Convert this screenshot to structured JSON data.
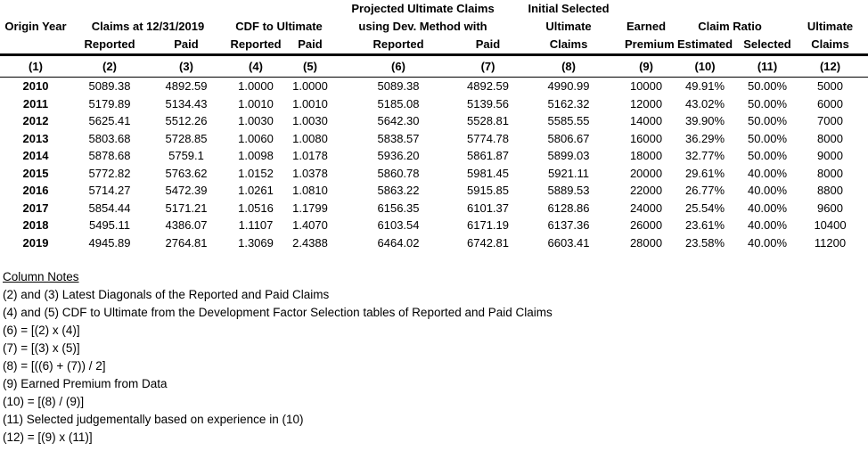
{
  "table": {
    "header": {
      "group_row": {
        "projected_ultimate": "Projected Ultimate Claims",
        "initial_selected": "Initial Selected"
      },
      "label_row": {
        "origin_year": "Origin Year",
        "claims_at_date": "Claims at 12/31/2019",
        "cdf_to_ultimate": "CDF to Ultimate",
        "using_dev_method": "using Dev. Method with",
        "initial_ultimate": "Ultimate",
        "earned": "Earned",
        "claim_ratio": "Claim Ratio",
        "ultimate": "Ultimate"
      },
      "sub_row": [
        "Reported",
        "Paid",
        "Reported",
        "Paid",
        "Reported",
        "Paid",
        "Claims",
        "Premium",
        "Estimated",
        "Selected",
        "Claims"
      ]
    },
    "col_numbers": [
      "(1)",
      "(2)",
      "(3)",
      "(4)",
      "(5)",
      "(6)",
      "(7)",
      "(8)",
      "(9)",
      "(10)",
      "(11)",
      "(12)"
    ],
    "rows": [
      [
        "2010",
        "5089.38",
        "4892.59",
        "1.0000",
        "1.0000",
        "5089.38",
        "4892.59",
        "4990.99",
        "10000",
        "49.91%",
        "50.00%",
        "5000"
      ],
      [
        "2011",
        "5179.89",
        "5134.43",
        "1.0010",
        "1.0010",
        "5185.08",
        "5139.56",
        "5162.32",
        "12000",
        "43.02%",
        "50.00%",
        "6000"
      ],
      [
        "2012",
        "5625.41",
        "5512.26",
        "1.0030",
        "1.0030",
        "5642.30",
        "5528.81",
        "5585.55",
        "14000",
        "39.90%",
        "50.00%",
        "7000"
      ],
      [
        "2013",
        "5803.68",
        "5728.85",
        "1.0060",
        "1.0080",
        "5838.57",
        "5774.78",
        "5806.67",
        "16000",
        "36.29%",
        "50.00%",
        "8000"
      ],
      [
        "2014",
        "5878.68",
        "5759.1",
        "1.0098",
        "1.0178",
        "5936.20",
        "5861.87",
        "5899.03",
        "18000",
        "32.77%",
        "50.00%",
        "9000"
      ],
      [
        "2015",
        "5772.82",
        "5763.62",
        "1.0152",
        "1.0378",
        "5860.78",
        "5981.45",
        "5921.11",
        "20000",
        "29.61%",
        "40.00%",
        "8000"
      ],
      [
        "2016",
        "5714.27",
        "5472.39",
        "1.0261",
        "1.0810",
        "5863.22",
        "5915.85",
        "5889.53",
        "22000",
        "26.77%",
        "40.00%",
        "8800"
      ],
      [
        "2017",
        "5854.44",
        "5171.21",
        "1.0516",
        "1.1799",
        "6156.35",
        "6101.37",
        "6128.86",
        "24000",
        "25.54%",
        "40.00%",
        "9600"
      ],
      [
        "2018",
        "5495.11",
        "4386.07",
        "1.1107",
        "1.4070",
        "6103.54",
        "6171.19",
        "6137.36",
        "26000",
        "23.61%",
        "40.00%",
        "10400"
      ],
      [
        "2019",
        "4945.89",
        "2764.81",
        "1.3069",
        "2.4388",
        "6464.02",
        "6742.81",
        "6603.41",
        "28000",
        "23.58%",
        "40.00%",
        "11200"
      ]
    ]
  },
  "notes": {
    "title": "Column Notes",
    "lines": [
      "(2) and (3) Latest Diagonals of the Reported and Paid Claims",
      "(4) and (5) CDF to Ultimate from the Development Factor Selection tables of Reported and Paid Claims",
      "(6) = [(2) x (4)]",
      "(7) = [(3) x (5)]",
      "(8) = [((6) + (7)) / 2]",
      "(9) Earned Premium from Data",
      "(10) = [(8) / (9)]",
      "(11) Selected judgementally based on experience in (10)",
      "(12) = [(9) x (11)]"
    ]
  }
}
